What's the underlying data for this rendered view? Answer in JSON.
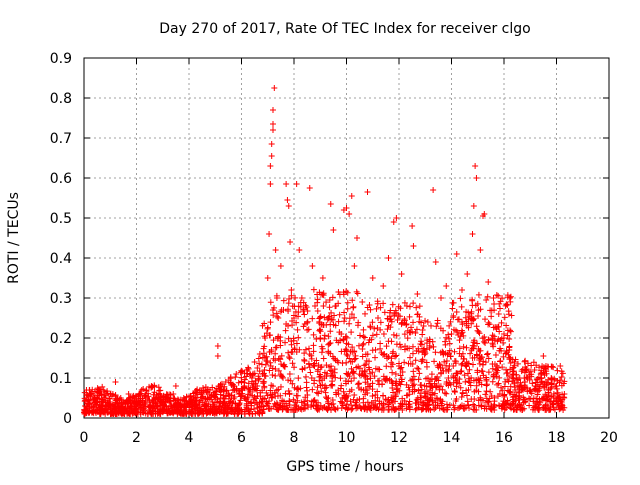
{
  "chart_data": {
    "type": "scatter",
    "title": "Day 270 of 2017, Rate Of TEC Index for receiver clgo",
    "xlabel": "GPS time / hours",
    "ylabel": "ROTI / TECUs",
    "xlim": [
      0,
      20
    ],
    "ylim": [
      0,
      0.9
    ],
    "xticks": [
      0,
      2,
      4,
      6,
      8,
      10,
      12,
      14,
      16,
      18,
      20
    ],
    "yticks": [
      0,
      0.1,
      0.2,
      0.3,
      0.4,
      0.5,
      0.6,
      0.7,
      0.8,
      0.9
    ],
    "xtick_labels": [
      "0",
      "2",
      "4",
      "6",
      "8",
      "10",
      "12",
      "14",
      "16",
      "18",
      "20"
    ],
    "ytick_labels": [
      "0",
      "0.1",
      "0.2",
      "0.3",
      "0.4",
      "0.5",
      "0.6",
      "0.7",
      "0.8",
      "0.9"
    ],
    "grid": true,
    "marker": "+",
    "color": "#ff0000",
    "series": [
      {
        "name": "ROTI",
        "points": [
          [
            0.0,
            0.02
          ],
          [
            0.1,
            0.03
          ],
          [
            0.2,
            0.04
          ],
          [
            0.3,
            0.03
          ],
          [
            0.4,
            0.05
          ],
          [
            0.5,
            0.02
          ],
          [
            0.6,
            0.04
          ],
          [
            0.7,
            0.03
          ],
          [
            0.8,
            0.05
          ],
          [
            0.9,
            0.02
          ],
          [
            1.0,
            0.04
          ],
          [
            1.1,
            0.06
          ],
          [
            1.2,
            0.09
          ],
          [
            1.3,
            0.03
          ],
          [
            1.4,
            0.05
          ],
          [
            1.5,
            0.02
          ],
          [
            1.6,
            0.04
          ],
          [
            1.7,
            0.06
          ],
          [
            1.8,
            0.03
          ],
          [
            1.9,
            0.05
          ],
          [
            2.0,
            0.04
          ],
          [
            2.1,
            0.06
          ],
          [
            2.2,
            0.07
          ],
          [
            2.3,
            0.03
          ],
          [
            2.4,
            0.05
          ],
          [
            2.5,
            0.02
          ],
          [
            2.6,
            0.04
          ],
          [
            2.7,
            0.05
          ],
          [
            2.8,
            0.03
          ],
          [
            2.9,
            0.04
          ],
          [
            3.0,
            0.02
          ],
          [
            3.1,
            0.04
          ],
          [
            3.2,
            0.05
          ],
          [
            3.3,
            0.03
          ],
          [
            3.4,
            0.06
          ],
          [
            3.5,
            0.08
          ],
          [
            3.6,
            0.04
          ],
          [
            3.7,
            0.03
          ],
          [
            3.8,
            0.05
          ],
          [
            3.9,
            0.02
          ],
          [
            4.0,
            0.04
          ],
          [
            4.1,
            0.03
          ],
          [
            4.2,
            0.05
          ],
          [
            4.3,
            0.02
          ],
          [
            4.4,
            0.04
          ],
          [
            4.5,
            0.06
          ],
          [
            4.6,
            0.03
          ],
          [
            4.7,
            0.05
          ],
          [
            4.8,
            0.07
          ],
          [
            4.9,
            0.04
          ],
          [
            5.0,
            0.06
          ],
          [
            5.1,
            0.18
          ],
          [
            5.1,
            0.155
          ],
          [
            5.2,
            0.08
          ],
          [
            5.3,
            0.05
          ],
          [
            5.4,
            0.09
          ],
          [
            5.5,
            0.06
          ],
          [
            5.6,
            0.04
          ],
          [
            5.7,
            0.08
          ],
          [
            5.8,
            0.11
          ],
          [
            5.9,
            0.06
          ],
          [
            6.0,
            0.09
          ],
          [
            6.1,
            0.05
          ],
          [
            6.2,
            0.12
          ],
          [
            6.3,
            0.07
          ],
          [
            6.4,
            0.1
          ],
          [
            6.5,
            0.14
          ],
          [
            6.6,
            0.08
          ],
          [
            6.7,
            0.16
          ],
          [
            6.8,
            0.11
          ],
          [
            6.9,
            0.2
          ],
          [
            7.0,
            0.35
          ],
          [
            7.05,
            0.46
          ],
          [
            7.1,
            0.585
          ],
          [
            7.1,
            0.63
          ],
          [
            7.15,
            0.655
          ],
          [
            7.15,
            0.685
          ],
          [
            7.2,
            0.72
          ],
          [
            7.2,
            0.735
          ],
          [
            7.2,
            0.77
          ],
          [
            7.25,
            0.825
          ],
          [
            7.3,
            0.42
          ],
          [
            7.35,
            0.3
          ],
          [
            7.4,
            0.25
          ],
          [
            7.5,
            0.38
          ],
          [
            7.6,
            0.27
          ],
          [
            7.7,
            0.585
          ],
          [
            7.75,
            0.545
          ],
          [
            7.8,
            0.53
          ],
          [
            7.85,
            0.44
          ],
          [
            7.9,
            0.32
          ],
          [
            8.0,
            0.25
          ],
          [
            8.1,
            0.585
          ],
          [
            8.2,
            0.42
          ],
          [
            8.3,
            0.3
          ],
          [
            8.5,
            0.22
          ],
          [
            8.6,
            0.575
          ],
          [
            8.7,
            0.38
          ],
          [
            8.8,
            0.28
          ],
          [
            9.0,
            0.2
          ],
          [
            9.1,
            0.35
          ],
          [
            9.3,
            0.25
          ],
          [
            9.4,
            0.535
          ],
          [
            9.5,
            0.47
          ],
          [
            9.6,
            0.28
          ],
          [
            9.8,
            0.21
          ],
          [
            9.9,
            0.52
          ],
          [
            10.0,
            0.525
          ],
          [
            10.1,
            0.51
          ],
          [
            10.2,
            0.555
          ],
          [
            10.3,
            0.38
          ],
          [
            10.4,
            0.45
          ],
          [
            10.6,
            0.29
          ],
          [
            10.8,
            0.565
          ],
          [
            11.0,
            0.35
          ],
          [
            11.2,
            0.25
          ],
          [
            11.4,
            0.33
          ],
          [
            11.6,
            0.4
          ],
          [
            11.8,
            0.49
          ],
          [
            11.9,
            0.5
          ],
          [
            12.1,
            0.36
          ],
          [
            12.3,
            0.28
          ],
          [
            12.5,
            0.48
          ],
          [
            12.55,
            0.43
          ],
          [
            12.7,
            0.31
          ],
          [
            12.9,
            0.22
          ],
          [
            13.1,
            0.24
          ],
          [
            13.3,
            0.57
          ],
          [
            13.4,
            0.39
          ],
          [
            13.6,
            0.3
          ],
          [
            13.8,
            0.33
          ],
          [
            14.0,
            0.21
          ],
          [
            14.2,
            0.41
          ],
          [
            14.4,
            0.32
          ],
          [
            14.6,
            0.36
          ],
          [
            14.8,
            0.46
          ],
          [
            14.85,
            0.53
          ],
          [
            14.9,
            0.63
          ],
          [
            14.95,
            0.6
          ],
          [
            15.1,
            0.42
          ],
          [
            15.2,
            0.505
          ],
          [
            15.25,
            0.51
          ],
          [
            15.4,
            0.34
          ],
          [
            15.6,
            0.3
          ],
          [
            15.8,
            0.26
          ],
          [
            16.0,
            0.21
          ],
          [
            16.2,
            0.17
          ],
          [
            16.4,
            0.14
          ],
          [
            16.6,
            0.1
          ],
          [
            16.8,
            0.09
          ],
          [
            17.0,
            0.07
          ],
          [
            17.2,
            0.08
          ],
          [
            17.4,
            0.11
          ],
          [
            17.5,
            0.155
          ],
          [
            17.6,
            0.09
          ],
          [
            17.7,
            0.07
          ],
          [
            17.8,
            0.1
          ],
          [
            17.9,
            0.06
          ],
          [
            18.0,
            0.08
          ],
          [
            18.1,
            0.05
          ],
          [
            18.2,
            0.04
          ],
          [
            18.3,
            0.06
          ]
        ]
      }
    ]
  }
}
